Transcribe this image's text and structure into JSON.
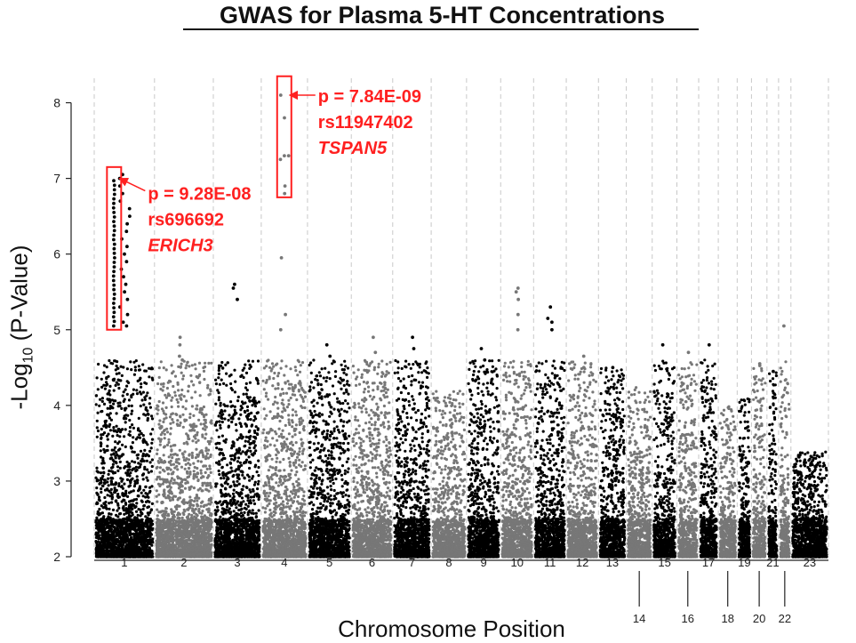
{
  "chart_data": {
    "type": "scatter",
    "subtype": "manhattan",
    "title": "GWAS for Plasma 5-HT Concentrations",
    "ylabel": "-Log10 (P-Value)",
    "ylabel_parts": {
      "main": "-Log",
      "sub": "10",
      "rest": " (P-Value)"
    },
    "xlabel": "Chromosome Position",
    "ylim": [
      2,
      8.3
    ],
    "yticks": [
      2,
      3,
      4,
      5,
      6,
      7,
      8
    ],
    "baseline_min": 2.0,
    "chromosomes": [
      {
        "label": "1",
        "start": 0,
        "end": 249,
        "peak": 7.05,
        "color": "#000000",
        "label_row": 1,
        "tall": [
          5.05,
          5.1,
          5.2,
          5.3,
          5.4,
          5.5,
          5.6,
          5.7,
          5.8,
          5.9,
          6.0,
          6.1,
          6.2,
          6.3,
          6.4,
          6.5,
          6.6,
          6.7,
          6.8,
          6.9,
          7.0,
          7.05
        ]
      },
      {
        "label": "2",
        "start": 249,
        "end": 492,
        "peak": 4.9,
        "color": "#777777",
        "label_row": 1,
        "tall": [
          4.6,
          4.65,
          4.8,
          4.9
        ]
      },
      {
        "label": "3",
        "start": 492,
        "end": 690,
        "peak": 5.6,
        "color": "#000000",
        "label_row": 1,
        "tall": [
          5.4,
          5.55,
          5.6
        ]
      },
      {
        "label": "4",
        "start": 690,
        "end": 881,
        "peak": 8.1,
        "color": "#777777",
        "label_row": 1,
        "tall": [
          5.0,
          5.2,
          5.95,
          6.9,
          7.25,
          7.3,
          8.1
        ]
      },
      {
        "label": "5",
        "start": 881,
        "end": 1062,
        "peak": 4.8,
        "color": "#000000",
        "label_row": 1,
        "tall": [
          4.65,
          4.8
        ]
      },
      {
        "label": "6",
        "start": 1062,
        "end": 1233,
        "peak": 4.9,
        "color": "#777777",
        "label_row": 1,
        "tall": [
          4.7,
          4.9
        ]
      },
      {
        "label": "7",
        "start": 1233,
        "end": 1392,
        "peak": 4.9,
        "color": "#000000",
        "label_row": 1,
        "tall": [
          4.75,
          4.9
        ]
      },
      {
        "label": "8",
        "start": 1392,
        "end": 1538,
        "peak": 4.2,
        "color": "#777777",
        "label_row": 1,
        "tall": []
      },
      {
        "label": "9",
        "start": 1538,
        "end": 1679,
        "peak": 4.75,
        "color": "#000000",
        "label_row": 1,
        "tall": [
          4.6,
          4.75
        ]
      },
      {
        "label": "10",
        "start": 1679,
        "end": 1815,
        "peak": 5.55,
        "color": "#777777",
        "label_row": 1,
        "tall": [
          5.0,
          5.2,
          5.4,
          5.5,
          5.55
        ]
      },
      {
        "label": "11",
        "start": 1815,
        "end": 1950,
        "peak": 5.3,
        "color": "#000000",
        "label_row": 1,
        "tall": [
          5.0,
          5.1,
          5.15,
          5.3
        ]
      },
      {
        "label": "12",
        "start": 1950,
        "end": 2083,
        "peak": 4.65,
        "color": "#777777",
        "label_row": 1,
        "tall": [
          4.5,
          4.65
        ]
      },
      {
        "label": "13",
        "start": 2083,
        "end": 2198,
        "peak": 4.5,
        "color": "#000000",
        "label_row": 1,
        "tall": [
          4.5
        ]
      },
      {
        "label": "14",
        "start": 2198,
        "end": 2305,
        "peak": 4.25,
        "color": "#777777",
        "label_row": 2,
        "tall": []
      },
      {
        "label": "15",
        "start": 2305,
        "end": 2407,
        "peak": 4.8,
        "color": "#000000",
        "label_row": 1,
        "tall": [
          4.8
        ]
      },
      {
        "label": "16",
        "start": 2407,
        "end": 2497,
        "peak": 4.7,
        "color": "#777777",
        "label_row": 2,
        "tall": [
          4.7
        ]
      },
      {
        "label": "17",
        "start": 2497,
        "end": 2578,
        "peak": 4.8,
        "color": "#000000",
        "label_row": 1,
        "tall": [
          4.8
        ]
      },
      {
        "label": "18",
        "start": 2578,
        "end": 2656,
        "peak": 4.0,
        "color": "#777777",
        "label_row": 2,
        "tall": []
      },
      {
        "label": "19",
        "start": 2656,
        "end": 2715,
        "peak": 4.1,
        "color": "#000000",
        "label_row": 1,
        "tall": []
      },
      {
        "label": "20",
        "start": 2715,
        "end": 2779,
        "peak": 4.55,
        "color": "#777777",
        "label_row": 2,
        "tall": [
          4.55
        ]
      },
      {
        "label": "21",
        "start": 2779,
        "end": 2827,
        "peak": 4.45,
        "color": "#000000",
        "label_row": 1,
        "tall": [
          4.45
        ]
      },
      {
        "label": "22",
        "start": 2827,
        "end": 2878,
        "peak": 5.05,
        "color": "#777777",
        "label_row": 2,
        "tall": [
          5.05
        ]
      },
      {
        "label": "23",
        "start": 2878,
        "end": 3033,
        "peak": 3.4,
        "color": "#000000",
        "label_row": 1,
        "tall": []
      }
    ],
    "annotations": [
      {
        "chromosome": "1",
        "pos": 82,
        "box_range": [
          5.0,
          7.15
        ],
        "text_y": 7.0,
        "lines": [
          "p = 9.28E-08",
          "rs696692",
          "ERICH3"
        ],
        "gene_italic": true,
        "color": "#ff2020"
      },
      {
        "chromosome": "4",
        "pos": 785,
        "box_range": [
          6.75,
          8.35
        ],
        "text_y": 8.1,
        "lines": [
          "p = 7.84E-09",
          "rs11947402",
          "TSPAN5"
        ],
        "gene_italic": true,
        "color": "#ff2020"
      }
    ]
  }
}
